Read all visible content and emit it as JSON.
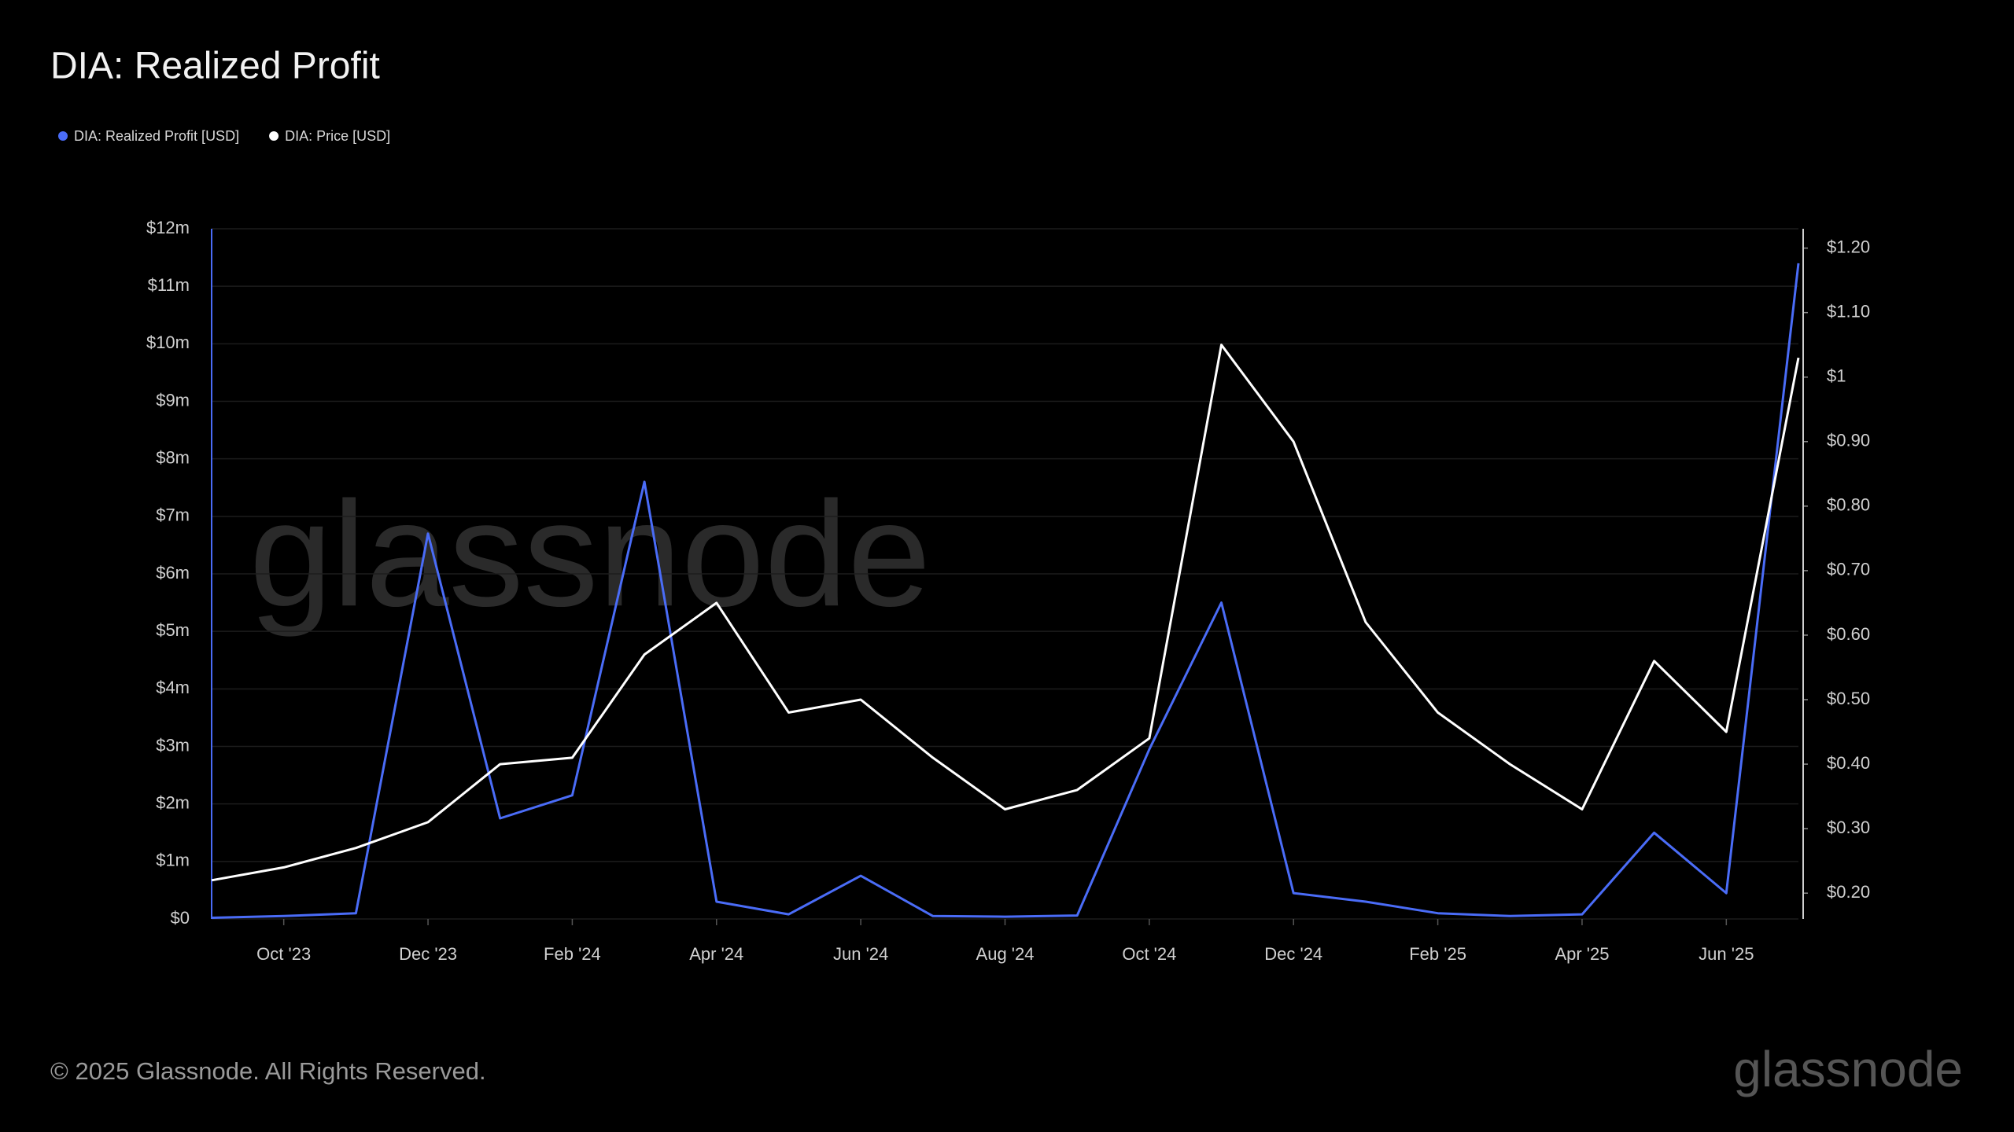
{
  "chart_data": {
    "type": "line",
    "title": "DIA: Realized Profit",
    "footer": "© 2025 Glassnode. All Rights Reserved.",
    "watermark": "glassnode",
    "x": [
      "2023-09",
      "2023-10",
      "2023-11",
      "2023-12",
      "2024-01",
      "2024-02",
      "2024-03",
      "2024-04",
      "2024-05",
      "2024-06",
      "2024-07",
      "2024-08",
      "2024-09",
      "2024-10",
      "2024-11",
      "2024-12",
      "2025-01",
      "2025-02",
      "2025-03",
      "2025-04",
      "2025-05",
      "2025-06",
      "2025-07"
    ],
    "xlim": [
      "2023-09",
      "2025-07"
    ],
    "xticks": [
      {
        "value": "2023-10",
        "label": "Oct '23"
      },
      {
        "value": "2023-12",
        "label": "Dec '23"
      },
      {
        "value": "2024-02",
        "label": "Feb '24"
      },
      {
        "value": "2024-04",
        "label": "Apr '24"
      },
      {
        "value": "2024-06",
        "label": "Jun '24"
      },
      {
        "value": "2024-08",
        "label": "Aug '24"
      },
      {
        "value": "2024-10",
        "label": "Oct '24"
      },
      {
        "value": "2024-12",
        "label": "Dec '24"
      },
      {
        "value": "2025-02",
        "label": "Feb '25"
      },
      {
        "value": "2025-04",
        "label": "Apr '25"
      },
      {
        "value": "2025-06",
        "label": "Jun '25"
      }
    ],
    "ylim": [
      0,
      12000000
    ],
    "yticks": [
      {
        "value": 0,
        "label": "$0"
      },
      {
        "value": 1000000,
        "label": "$1m"
      },
      {
        "value": 2000000,
        "label": "$2m"
      },
      {
        "value": 3000000,
        "label": "$3m"
      },
      {
        "value": 4000000,
        "label": "$4m"
      },
      {
        "value": 5000000,
        "label": "$5m"
      },
      {
        "value": 6000000,
        "label": "$6m"
      },
      {
        "value": 7000000,
        "label": "$7m"
      },
      {
        "value": 8000000,
        "label": "$8m"
      },
      {
        "value": 9000000,
        "label": "$9m"
      },
      {
        "value": 10000000,
        "label": "$10m"
      },
      {
        "value": 11000000,
        "label": "$11m"
      },
      {
        "value": 12000000,
        "label": "$12m"
      }
    ],
    "y2lim": [
      0.16,
      1.23
    ],
    "y2ticks": [
      {
        "value": 0.2,
        "label": "$0.20"
      },
      {
        "value": 0.3,
        "label": "$0.30"
      },
      {
        "value": 0.4,
        "label": "$0.40"
      },
      {
        "value": 0.5,
        "label": "$0.50"
      },
      {
        "value": 0.6,
        "label": "$0.60"
      },
      {
        "value": 0.7,
        "label": "$0.70"
      },
      {
        "value": 0.8,
        "label": "$0.80"
      },
      {
        "value": 0.9,
        "label": "$0.90"
      },
      {
        "value": 1,
        "label": "$1"
      },
      {
        "value": 1.1,
        "label": "$1.10"
      },
      {
        "value": 1.2,
        "label": "$1.20"
      }
    ],
    "grid": true,
    "series": [
      {
        "name": "DIA: Realized Profit [USD]",
        "color": "#4a6cf7",
        "values": [
          20000,
          50000,
          100000,
          6700000,
          1750000,
          2150000,
          7600000,
          300000,
          80000,
          750000,
          50000,
          40000,
          60000,
          2950000,
          5500000,
          450000,
          300000,
          100000,
          50000,
          80000,
          1500000,
          450000,
          11400000
        ]
      },
      {
        "name": "DIA: Price [USD]",
        "color": "#ffffff",
        "axis": "y2",
        "values": [
          0.22,
          0.24,
          0.27,
          0.31,
          0.4,
          0.41,
          0.57,
          0.65,
          0.48,
          0.5,
          0.41,
          0.33,
          0.36,
          0.44,
          1.05,
          0.9,
          0.62,
          0.48,
          0.4,
          0.33,
          0.56,
          0.45,
          1.03
        ]
      }
    ]
  }
}
